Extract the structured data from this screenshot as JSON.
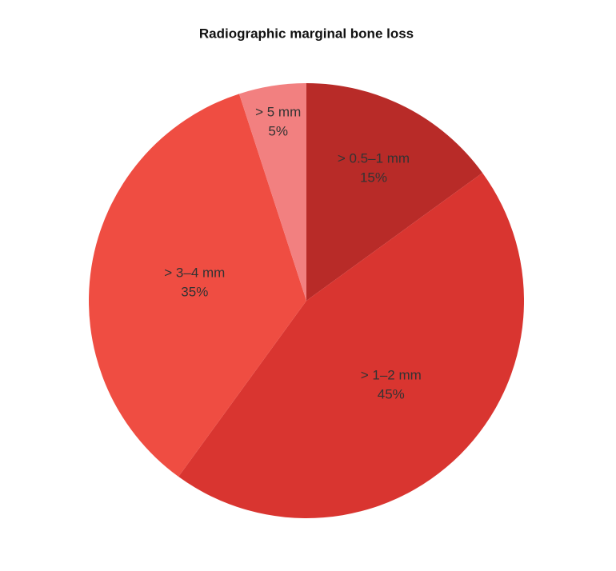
{
  "chart_data": {
    "type": "pie",
    "title": "Radiographic marginal bone loss",
    "categories": [
      "> 0.5–1 mm",
      "> 1–2 mm",
      "> 3–4 mm",
      "> 5 mm"
    ],
    "values": [
      15,
      45,
      35,
      5
    ],
    "value_labels": [
      "15%",
      "45%",
      "35%",
      "5%"
    ],
    "colors": [
      "#b82b28",
      "#d93530",
      "#ef4d42",
      "#f28080"
    ]
  }
}
